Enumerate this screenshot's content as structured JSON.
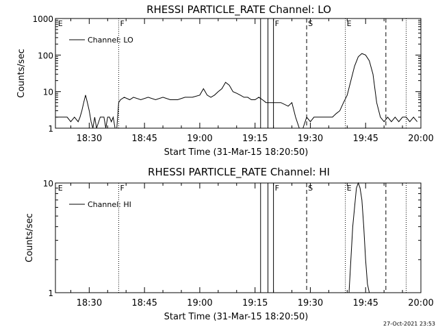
{
  "chart_data": [
    {
      "type": "line",
      "title": "RHESSI PARTICLE_RATE Channel: LO",
      "xlabel": "Start Time (31-Mar-15 18:20:50)",
      "ylabel": "Counts/sec",
      "xlim": [
        "18:20:50",
        "20:00:00"
      ],
      "ylim": [
        1,
        1000
      ],
      "yscale": "log",
      "yticks": [
        "1",
        "10",
        "100",
        "1000"
      ],
      "xticks": [
        "18:30",
        "18:45",
        "19:00",
        "19:15",
        "19:30",
        "19:45",
        "20:00"
      ],
      "legend": {
        "position": "top-left"
      },
      "series": [
        {
          "name": "Channel: LO",
          "x": [
            "18:20:50",
            "18:22:30",
            "18:24:00",
            "18:25:00",
            "18:26:00",
            "18:27:00",
            "18:27:30",
            "18:28:00",
            "18:28:30",
            "18:29:00",
            "18:29:30",
            "18:30:00",
            "18:30:30",
            "18:31:00",
            "18:31:30",
            "18:32:00",
            "18:33:00",
            "18:34:00",
            "18:34:30",
            "18:35:00",
            "18:35:30",
            "18:36:00",
            "18:36:30",
            "18:37:00",
            "18:37:30",
            "18:38:00",
            "18:38:30",
            "18:39:30",
            "18:41:00",
            "18:42:00",
            "18:44:00",
            "18:46:00",
            "18:48:00",
            "18:50:00",
            "18:52:00",
            "18:54:00",
            "18:56:00",
            "18:58:00",
            "19:00:00",
            "19:01:00",
            "19:02:00",
            "19:03:00",
            "19:04:00",
            "19:05:00",
            "19:06:00",
            "19:07:00",
            "19:08:00",
            "19:09:00",
            "19:10:00",
            "19:11:00",
            "19:12:00",
            "19:13:00",
            "19:14:00",
            "19:15:00",
            "19:16:00",
            "19:17:00",
            "19:18:00",
            "19:20:00",
            "19:22:00",
            "19:24:00",
            "19:25:00",
            "19:26:00",
            "19:27:00",
            "19:28:00",
            "19:29:00",
            "19:30:00",
            "19:31:00",
            "19:32:00",
            "19:34:00",
            "19:36:00",
            "19:37:00",
            "19:38:00",
            "19:39:00",
            "19:40:00",
            "19:41:00",
            "19:42:00",
            "19:43:00",
            "19:44:00",
            "19:45:00",
            "19:46:00",
            "19:47:00",
            "19:48:00",
            "19:49:00",
            "19:50:00",
            "19:51:00",
            "19:52:00",
            "19:53:00",
            "19:54:00",
            "19:55:00",
            "19:56:00",
            "19:57:00",
            "19:58:00",
            "19:59:00"
          ],
          "y": [
            2,
            2,
            2,
            1.5,
            2,
            1.5,
            2,
            3,
            5,
            8,
            5,
            3,
            1.5,
            1,
            2,
            1,
            2,
            2,
            1,
            2,
            2,
            1.5,
            2,
            1,
            1,
            5,
            6,
            7,
            6,
            7,
            6,
            7,
            6,
            7,
            6,
            6,
            7,
            7,
            8,
            12,
            8,
            7,
            8,
            10,
            12,
            18,
            15,
            10,
            9,
            8,
            7,
            7,
            6,
            6,
            7,
            6,
            5,
            5,
            5,
            4,
            5,
            2,
            1,
            1,
            2,
            1.5,
            2,
            2,
            2,
            2,
            2.5,
            3,
            5,
            8,
            20,
            50,
            90,
            110,
            100,
            70,
            30,
            5,
            2,
            1.5,
            2,
            1.5,
            2,
            1.5,
            2,
            2,
            1.5,
            2,
            1.5
          ]
        }
      ],
      "annotations": [
        {
          "label": "E",
          "time": "18:21:10",
          "style": "none"
        },
        {
          "label": "F",
          "time": "18:38:00",
          "style": "dotted"
        },
        {
          "label": "",
          "time": "19:16:30",
          "style": "solid"
        },
        {
          "label": "",
          "time": "19:18:30",
          "style": "solid"
        },
        {
          "label": "F",
          "time": "19:20:00",
          "style": "solid"
        },
        {
          "label": "S",
          "time": "19:29:00",
          "style": "dashed"
        },
        {
          "label": "E",
          "time": "19:39:30",
          "style": "dotted"
        },
        {
          "label": "",
          "time": "19:50:30",
          "style": "dashed"
        },
        {
          "label": "",
          "time": "19:56:00",
          "style": "dotted"
        }
      ]
    },
    {
      "type": "line",
      "title": "RHESSI PARTICLE_RATE Channel: HI",
      "xlabel": "Start Time (31-Mar-15 18:20:50)",
      "ylabel": "Counts/sec",
      "xlim": [
        "18:20:50",
        "20:00:00"
      ],
      "ylim": [
        1,
        10
      ],
      "yscale": "log",
      "yticks": [
        "1",
        "10"
      ],
      "xticks": [
        "18:30",
        "18:45",
        "19:00",
        "19:15",
        "19:30",
        "19:45",
        "20:00"
      ],
      "legend": {
        "position": "top-left"
      },
      "series": [
        {
          "name": "Channel: HI",
          "x": [
            "19:40:30",
            "19:41:00",
            "19:41:30",
            "19:42:00",
            "19:42:30",
            "19:43:00",
            "19:43:30",
            "19:44:00",
            "19:44:30",
            "19:45:00",
            "19:45:30",
            "19:46:00"
          ],
          "y": [
            1,
            2,
            4,
            6,
            9,
            10,
            9,
            7,
            4,
            2,
            1.2,
            1
          ]
        }
      ],
      "annotations": [
        {
          "label": "E",
          "time": "18:21:10",
          "style": "none"
        },
        {
          "label": "F",
          "time": "18:38:00",
          "style": "dotted"
        },
        {
          "label": "",
          "time": "19:16:30",
          "style": "solid"
        },
        {
          "label": "",
          "time": "19:18:30",
          "style": "solid"
        },
        {
          "label": "F",
          "time": "19:20:00",
          "style": "solid"
        },
        {
          "label": "S",
          "time": "19:29:00",
          "style": "dashed"
        },
        {
          "label": "E",
          "time": "19:39:30",
          "style": "dotted"
        },
        {
          "label": "",
          "time": "19:50:30",
          "style": "dashed"
        },
        {
          "label": "",
          "time": "19:56:00",
          "style": "dotted"
        }
      ]
    }
  ],
  "footer": {
    "timestamp": "27-Oct-2021 23:53"
  }
}
